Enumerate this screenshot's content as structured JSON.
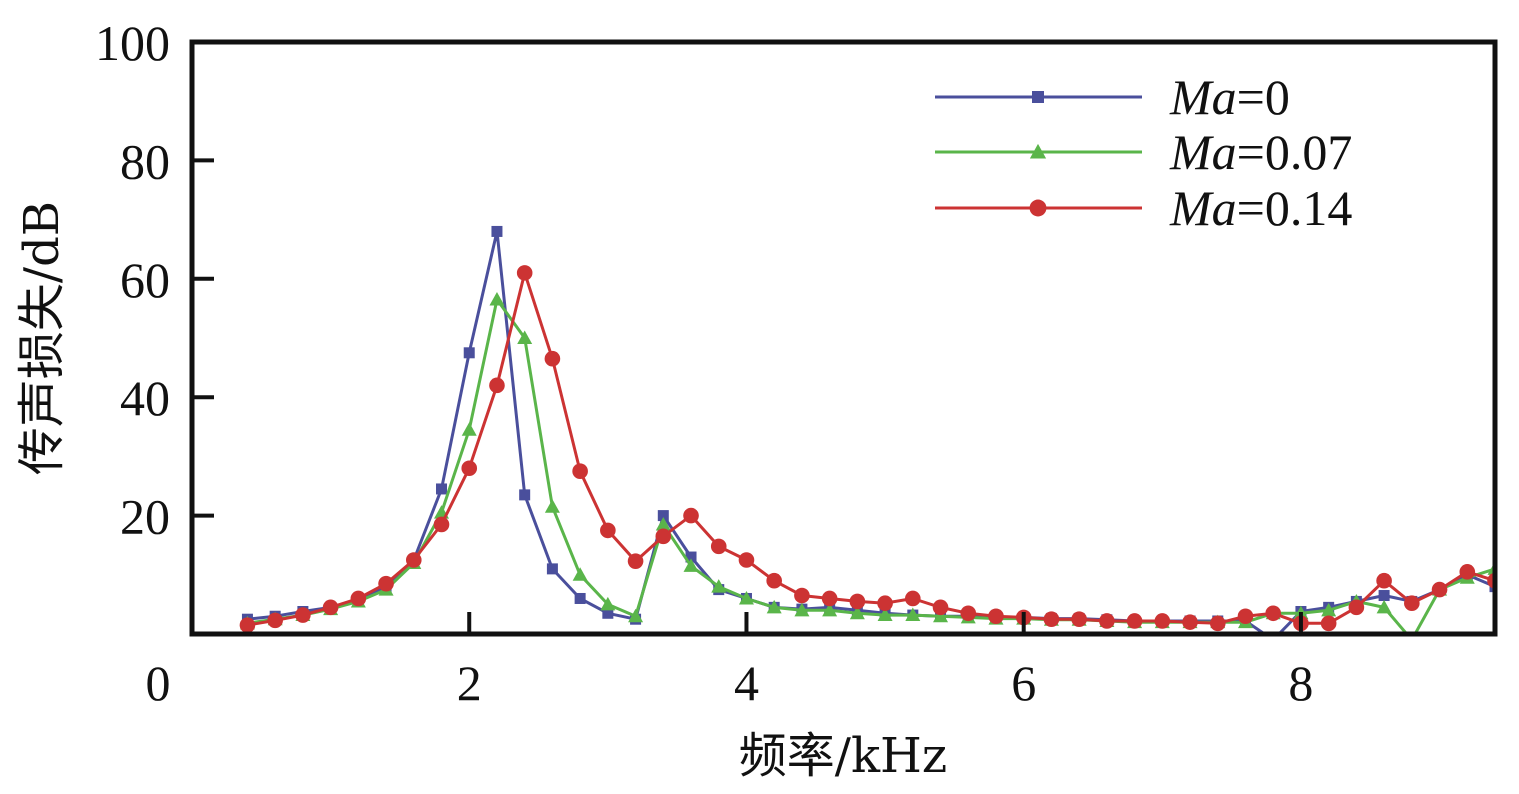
{
  "chart_data": {
    "type": "line",
    "xlabel": "频率/kHz",
    "ylabel": "传声损失/dB",
    "xlim": [
      0,
      9.4
    ],
    "ylim": [
      0,
      100
    ],
    "x_ticks": [
      "0",
      "2",
      "4",
      "6",
      "8"
    ],
    "y_ticks": [
      "20",
      "40",
      "60",
      "80",
      "100"
    ],
    "grid": false,
    "legend_position": "top-right",
    "x": [
      0.4,
      0.6,
      0.8,
      1.0,
      1.2,
      1.4,
      1.6,
      1.8,
      2.0,
      2.2,
      2.4,
      2.6,
      2.8,
      3.0,
      3.2,
      3.4,
      3.6,
      3.8,
      4.0,
      4.2,
      4.4,
      4.6,
      4.8,
      5.0,
      5.2,
      5.4,
      5.6,
      5.8,
      6.0,
      6.2,
      6.4,
      6.6,
      6.8,
      7.0,
      7.2,
      7.4,
      7.6,
      7.8,
      8.0,
      8.2,
      8.4,
      8.6,
      8.8,
      9.0,
      9.2,
      9.4
    ],
    "series": [
      {
        "name": "Ma=0",
        "name_italic": "Ma",
        "name_rest": "=0",
        "color": "#4a4f9c",
        "marker": "square",
        "values": [
          2.5,
          3,
          3.8,
          4.5,
          5.8,
          8,
          12.5,
          24.5,
          47.5,
          68,
          23.5,
          11,
          6,
          3.5,
          2.5,
          20,
          13,
          7.5,
          6,
          4.5,
          4.2,
          4.5,
          4,
          3.5,
          3.2,
          3,
          3,
          2.8,
          2.8,
          2.6,
          2.6,
          2.4,
          2.2,
          2.2,
          2.2,
          2.2,
          2.2,
          -1,
          3.8,
          4.5,
          5.5,
          6.5,
          5.5,
          7.5,
          10,
          8
        ]
      },
      {
        "name": "Ma=0.07",
        "name_italic": "Ma",
        "name_rest": "=0.07",
        "color": "#5ab54a",
        "marker": "triangle",
        "values": [
          1.8,
          2.5,
          3.2,
          4.2,
          5.5,
          7.5,
          12,
          20.5,
          34.5,
          56.5,
          50,
          21.5,
          10,
          5,
          3,
          18.5,
          11.5,
          8,
          6,
          4.5,
          4,
          4,
          3.5,
          3.2,
          3.2,
          3,
          2.8,
          2.6,
          2.6,
          2.4,
          2.4,
          2.2,
          2,
          2,
          2,
          2,
          2,
          3.5,
          3.5,
          4,
          5.5,
          4.5,
          -1,
          7.5,
          9.5,
          11
        ]
      },
      {
        "name": "Ma=0.14",
        "name_italic": "Ma",
        "name_rest": "=0.14",
        "color": "#cc3333",
        "marker": "circle",
        "values": [
          1.5,
          2.3,
          3.2,
          4.5,
          6,
          8.5,
          12.5,
          18.5,
          28,
          42,
          61,
          46.5,
          27.5,
          17.5,
          12.3,
          16.5,
          20,
          14.8,
          12.5,
          9,
          6.5,
          6,
          5.5,
          5.2,
          6,
          4.5,
          3.5,
          3,
          2.8,
          2.5,
          2.5,
          2.2,
          2.2,
          2.2,
          2,
          1.8,
          3,
          3.5,
          1.8,
          1.8,
          4.5,
          9,
          5.2,
          7.5,
          10.5,
          9
        ]
      }
    ]
  }
}
